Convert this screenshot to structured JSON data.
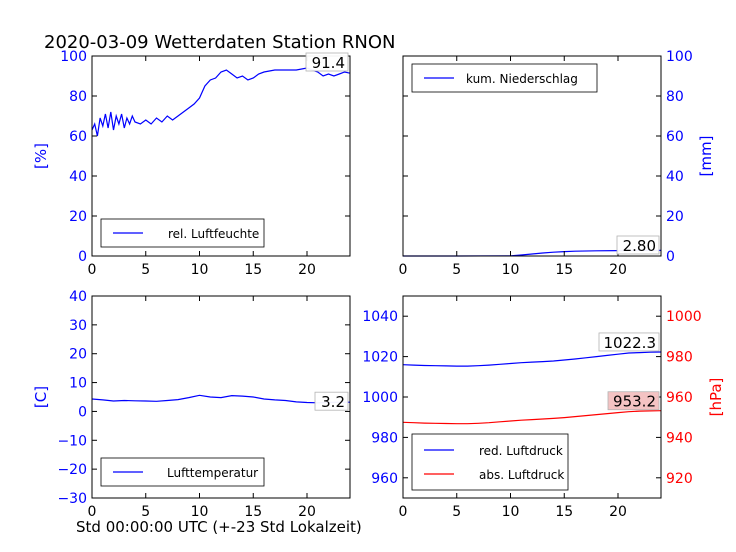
{
  "title": "2020-03-09 Wetterdaten Station RNON",
  "xlabel": "Std 00:00:00 UTC (+-23 Std Lokalzeit)",
  "colors": {
    "blue": "#0000ff",
    "red": "#ff0000",
    "label_bg_red": "#f4c0c0"
  },
  "chart_data": [
    {
      "type": "line",
      "name": "humidity",
      "ylabel": "[%]",
      "xlim": [
        0,
        24
      ],
      "ylim": [
        0,
        100
      ],
      "xticks": [
        0,
        5,
        10,
        15,
        20
      ],
      "yticks": [
        0,
        20,
        40,
        60,
        80,
        100
      ],
      "legend_position": "lower-left",
      "last_value_label": "91.4",
      "series": [
        {
          "name": "rel. Luftfeuchte",
          "color": "#0000ff",
          "x": [
            0,
            0.25,
            0.5,
            0.75,
            1,
            1.25,
            1.5,
            1.75,
            2,
            2.25,
            2.5,
            2.75,
            3,
            3.25,
            3.5,
            3.75,
            4,
            4.5,
            5,
            5.5,
            6,
            6.5,
            7,
            7.5,
            8,
            8.5,
            9,
            9.5,
            10,
            10.5,
            11,
            11.5,
            12,
            12.5,
            13,
            13.5,
            14,
            14.5,
            15,
            15.5,
            16,
            17,
            18,
            19,
            20,
            20.5,
            21,
            21.5,
            22,
            22.5,
            23,
            23.5,
            24
          ],
          "y": [
            63,
            66,
            60,
            69,
            65,
            71,
            64,
            72,
            63,
            70,
            66,
            71,
            64,
            69,
            66,
            70,
            67,
            66,
            68,
            66,
            69,
            67,
            70,
            68,
            70,
            72,
            74,
            76,
            79,
            85,
            88,
            89,
            92,
            93,
            91,
            89,
            90,
            88,
            89,
            91,
            92,
            93,
            93,
            93,
            94,
            93,
            92,
            90,
            91,
            90,
            91,
            92,
            91.4
          ]
        }
      ]
    },
    {
      "type": "line",
      "name": "precipitation",
      "ylabel": "[mm]",
      "xlim": [
        0,
        24
      ],
      "ylim": [
        0,
        100
      ],
      "xticks": [
        0,
        5,
        10,
        15,
        20
      ],
      "yticks": [
        0,
        20,
        40,
        60,
        80,
        100
      ],
      "legend_position": "top-left",
      "last_value_label": "2.80",
      "series": [
        {
          "name": "kum. Niederschlag",
          "color": "#0000ff",
          "x": [
            0,
            5,
            10,
            11,
            12,
            13,
            14,
            15,
            16,
            18,
            20,
            22,
            24
          ],
          "y": [
            0,
            0,
            0.1,
            0.5,
            1,
            1.5,
            1.9,
            2.2,
            2.4,
            2.6,
            2.7,
            2.8,
            2.8
          ]
        }
      ]
    },
    {
      "type": "line",
      "name": "temperature",
      "ylabel": "[C]",
      "xlim": [
        0,
        24
      ],
      "ylim": [
        -30,
        40
      ],
      "xticks": [
        0,
        5,
        10,
        15,
        20
      ],
      "yticks": [
        -30,
        -20,
        -10,
        0,
        10,
        20,
        30,
        40
      ],
      "legend_position": "lower-left",
      "last_value_label": "3.2",
      "series": [
        {
          "name": "Lufttemperatur",
          "color": "#0000ff",
          "x": [
            0,
            1,
            2,
            3,
            4,
            5,
            6,
            7,
            8,
            9,
            10,
            11,
            12,
            13,
            14,
            15,
            16,
            17,
            18,
            19,
            20,
            21,
            22,
            23,
            24
          ],
          "y": [
            4.3,
            4.0,
            3.6,
            3.8,
            3.7,
            3.6,
            3.5,
            3.8,
            4.1,
            4.8,
            5.6,
            5.0,
            4.8,
            5.5,
            5.3,
            5.0,
            4.3,
            4.0,
            3.8,
            3.3,
            3.1,
            3.0,
            3.1,
            3.2,
            3.2
          ]
        }
      ]
    },
    {
      "type": "line",
      "name": "pressure",
      "ylabel_left": "",
      "ylabel_right": "[hPa]",
      "xlim": [
        0,
        24
      ],
      "ylim_left": [
        950,
        1050
      ],
      "ylim_right": [
        910,
        1010
      ],
      "xticks": [
        0,
        5,
        10,
        15,
        20
      ],
      "yticks_left": [
        960,
        980,
        1000,
        1020,
        1040
      ],
      "yticks_right": [
        920,
        940,
        960,
        980,
        1000
      ],
      "legend_position": "lower-left",
      "last_value_labels": [
        "1022.3",
        "953.2"
      ],
      "series": [
        {
          "name": "red. Luftdruck",
          "color": "#0000ff",
          "axis": "left",
          "x": [
            0,
            1,
            2,
            3,
            4,
            5,
            6,
            7,
            8,
            9,
            10,
            11,
            12,
            13,
            14,
            15,
            16,
            17,
            18,
            19,
            20,
            21,
            22,
            23,
            24
          ],
          "y": [
            1016,
            1015.8,
            1015.6,
            1015.5,
            1015.4,
            1015.3,
            1015.3,
            1015.5,
            1015.8,
            1016.2,
            1016.6,
            1017,
            1017.3,
            1017.5,
            1017.8,
            1018.3,
            1018.8,
            1019.4,
            1020,
            1020.6,
            1021.2,
            1021.8,
            1022.0,
            1022.2,
            1022.3
          ]
        },
        {
          "name": "abs. Luftdruck",
          "color": "#ff0000",
          "axis": "right",
          "x": [
            0,
            1,
            2,
            3,
            4,
            5,
            6,
            7,
            8,
            9,
            10,
            11,
            12,
            13,
            14,
            15,
            16,
            17,
            18,
            19,
            20,
            21,
            22,
            23,
            24
          ],
          "y": [
            947.5,
            947.3,
            947.1,
            947,
            946.9,
            946.8,
            946.8,
            947,
            947.3,
            947.7,
            948.1,
            948.5,
            948.8,
            949.1,
            949.4,
            949.8,
            950.3,
            950.8,
            951.3,
            951.8,
            952.3,
            952.7,
            953.0,
            953.1,
            953.2
          ]
        }
      ]
    }
  ]
}
